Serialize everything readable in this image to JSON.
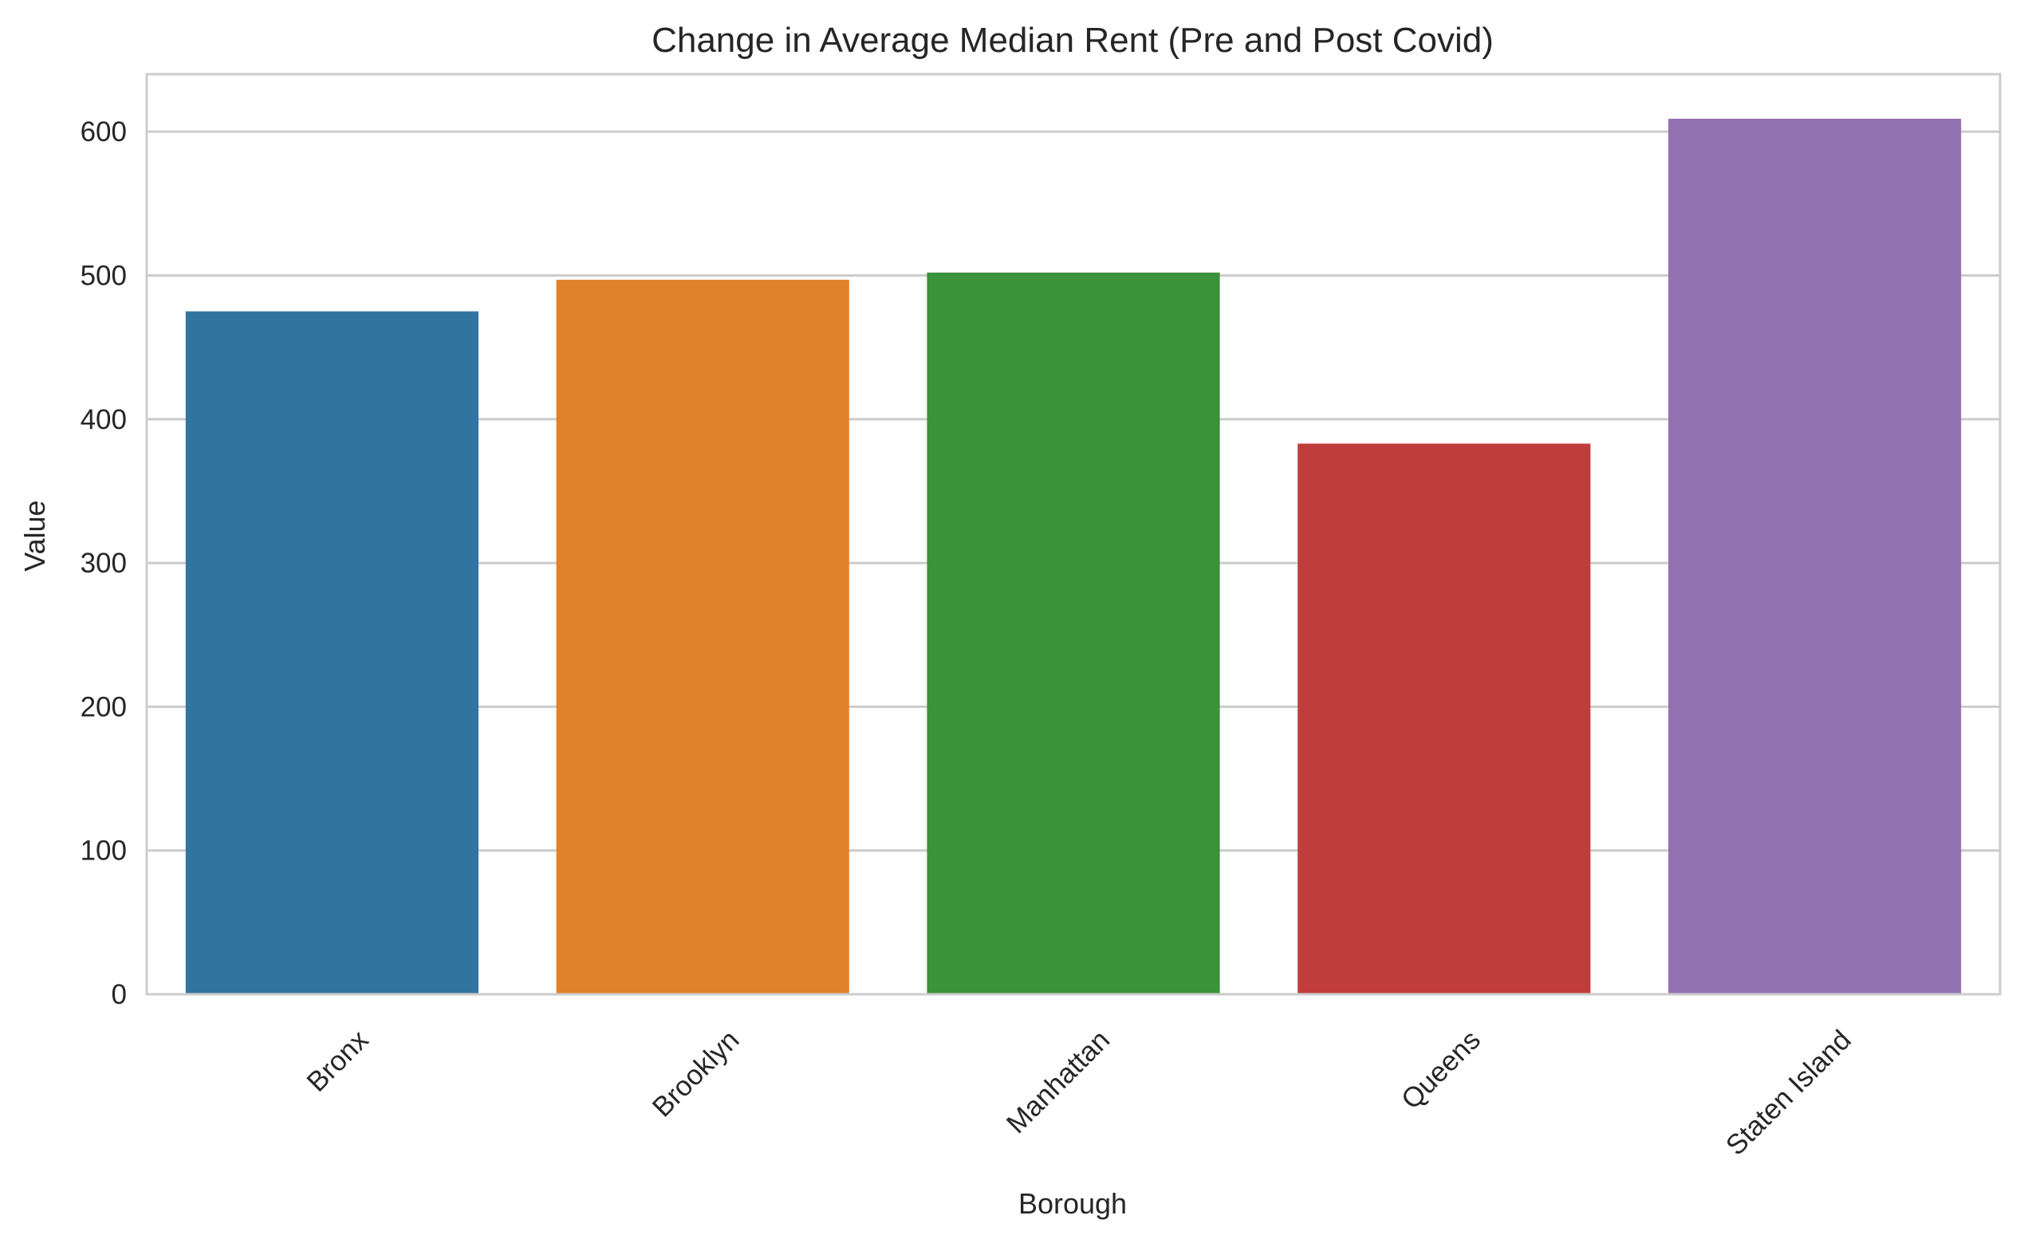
{
  "chart_data": {
    "type": "bar",
    "title": "Change in Average Median Rent (Pre and Post Covid)",
    "xlabel": "Borough",
    "ylabel": "Value",
    "categories": [
      "Bronx",
      "Brooklyn",
      "Manhattan",
      "Queens",
      "Staten Island"
    ],
    "values": [
      475,
      497,
      502,
      383,
      609
    ],
    "colors": [
      "#3274a1",
      "#e1812c",
      "#3a923a",
      "#c03d3e",
      "#9372b2"
    ],
    "ylim": [
      0,
      640
    ],
    "yticks": [
      0,
      100,
      200,
      300,
      400,
      500,
      600
    ],
    "ytick_labels": [
      "0",
      "100",
      "200",
      "300",
      "400",
      "500",
      "600"
    ],
    "grid": "horizontal",
    "background": "#ffffff",
    "grid_color": "#cccccc"
  }
}
